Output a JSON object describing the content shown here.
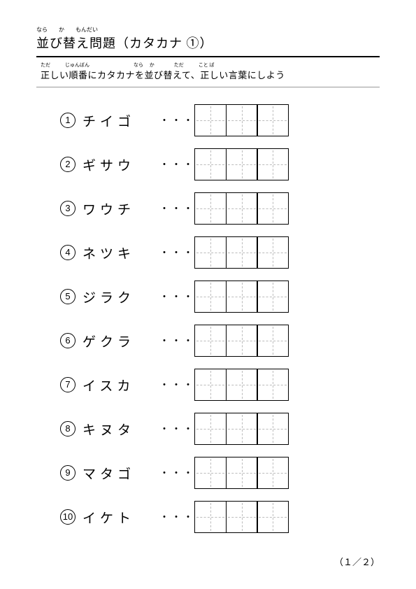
{
  "title": {
    "main": "並び替え問題（カタカナ ①）",
    "ruby": "なら　　か　　もんだい"
  },
  "instruction": {
    "main": "正しい順番にカタカナを並び替えて、正しい言葉にしよう",
    "ruby": "ただ　　　じゅんばん　　　　　　　　　なら　 か　　　　ただ　　　こと ば"
  },
  "dots": "・・・",
  "items": [
    {
      "num": "1",
      "word": "チイゴ",
      "cells": 3
    },
    {
      "num": "2",
      "word": "ギサウ",
      "cells": 3
    },
    {
      "num": "3",
      "word": "ワウチ",
      "cells": 3
    },
    {
      "num": "4",
      "word": "ネツキ",
      "cells": 3
    },
    {
      "num": "5",
      "word": "ジラク",
      "cells": 3
    },
    {
      "num": "6",
      "word": "ゲクラ",
      "cells": 3
    },
    {
      "num": "7",
      "word": "イスカ",
      "cells": 3
    },
    {
      "num": "8",
      "word": "キヌタ",
      "cells": 3
    },
    {
      "num": "9",
      "word": "マタゴ",
      "cells": 3
    },
    {
      "num": "10",
      "word": "イケト",
      "cells": 3
    }
  ],
  "page_number": "（１／２）"
}
